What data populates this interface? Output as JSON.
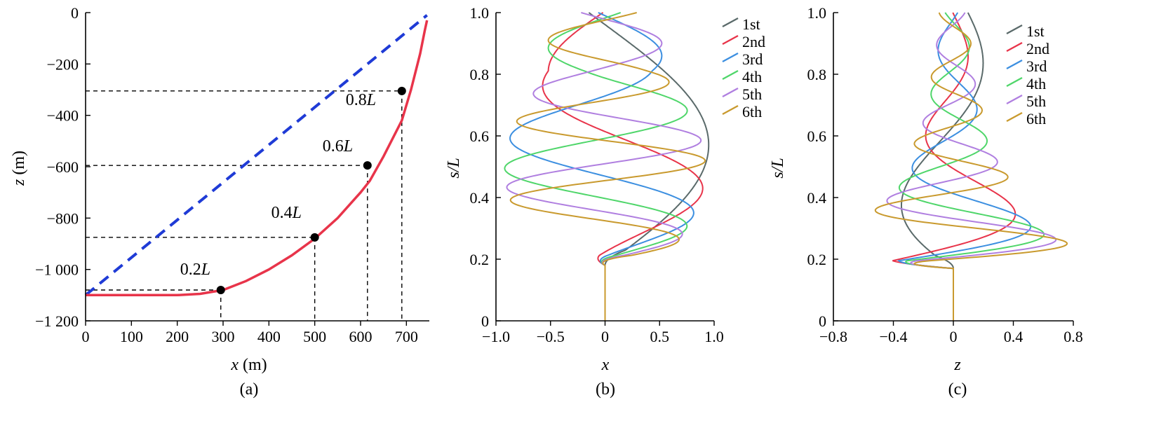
{
  "chart_data": [
    {
      "type": "line",
      "caption": "(a)",
      "xlabel_var": "x",
      "xlabel_unit": " (m)",
      "ylabel_var": "z",
      "ylabel_unit": " (m)",
      "xlim": [
        0,
        750
      ],
      "ylim": [
        -1200,
        0
      ],
      "xticks": [
        0,
        100,
        200,
        300,
        400,
        500,
        600,
        700
      ],
      "xtick_labels": [
        "0",
        "100",
        "200",
        "300",
        "400",
        "500",
        "600",
        "700"
      ],
      "yticks": [
        0,
        -200,
        -400,
        -600,
        -800,
        -1000,
        -1200
      ],
      "ytick_labels": [
        "0",
        "−200",
        "−400",
        "−600",
        "−800",
        "−1 000",
        "−1 200"
      ],
      "series": [
        {
          "style": "solid",
          "color": "#e8344a",
          "x": [
            0,
            100,
            200,
            250,
            300,
            350,
            400,
            450,
            500,
            550,
            600,
            620,
            650,
            690,
            710,
            730,
            740,
            745
          ],
          "y": [
            -1100,
            -1100,
            -1100,
            -1095,
            -1080,
            -1045,
            -1000,
            -945,
            -880,
            -800,
            -700,
            -655,
            -560,
            -420,
            -300,
            -160,
            -70,
            -30
          ]
        },
        {
          "style": "dashed",
          "color": "#1f3bd6",
          "x": [
            0,
            745
          ],
          "y": [
            -1100,
            -10
          ]
        }
      ],
      "markers": [
        {
          "label_num": "0.2",
          "label_var": "L",
          "x": 295,
          "y": -1080
        },
        {
          "label_num": "0.4",
          "label_var": "L",
          "x": 500,
          "y": -875
        },
        {
          "label_num": "0.6",
          "label_var": "L",
          "x": 615,
          "y": -595
        },
        {
          "label_num": "0.8",
          "label_var": "L",
          "x": 690,
          "y": -305
        }
      ]
    },
    {
      "type": "line",
      "caption": "(b)",
      "xlabel_var": "x",
      "ylabel_var": "s/L",
      "xlim": [
        -1.0,
        1.0
      ],
      "ylim": [
        0,
        1.0
      ],
      "xticks": [
        -1.0,
        -0.5,
        0,
        0.5,
        1.0
      ],
      "xtick_labels": [
        "−1.0",
        "−0.5",
        "0",
        "0.5",
        "1.0"
      ],
      "yticks": [
        0,
        0.2,
        0.4,
        0.6,
        0.8,
        1.0
      ],
      "ytick_labels": [
        "0",
        "0.2",
        "0.4",
        "0.6",
        "0.8",
        "1.0"
      ],
      "legend_position": "top-right",
      "series": [
        {
          "name": "1st",
          "color": "#5a6a6a",
          "mode": 1
        },
        {
          "name": "2nd",
          "color": "#e8344a",
          "mode": 2
        },
        {
          "name": "3rd",
          "color": "#3c8fe0",
          "mode": 3
        },
        {
          "name": "4th",
          "color": "#4fd66a",
          "mode": 4
        },
        {
          "name": "5th",
          "color": "#b07fe0",
          "mode": 5
        },
        {
          "name": "6th",
          "color": "#c99a2e",
          "mode": 6
        }
      ]
    },
    {
      "type": "line",
      "caption": "(c)",
      "xlabel_var": "z",
      "ylabel_var": "s/L",
      "xlim": [
        -0.8,
        0.8
      ],
      "ylim": [
        0,
        1.0
      ],
      "xticks": [
        -0.8,
        -0.4,
        0,
        0.4,
        0.8
      ],
      "xtick_labels": [
        "−0.8",
        "−0.4",
        "0",
        "0.4",
        "0.8"
      ],
      "yticks": [
        0,
        0.2,
        0.4,
        0.6,
        0.8,
        1.0
      ],
      "ytick_labels": [
        "0",
        "0.2",
        "0.4",
        "0.6",
        "0.8",
        "1.0"
      ],
      "legend_position": "top-right",
      "series": [
        {
          "name": "1st",
          "color": "#5a6a6a",
          "mode": 1
        },
        {
          "name": "2nd",
          "color": "#e8344a",
          "mode": 2
        },
        {
          "name": "3rd",
          "color": "#3c8fe0",
          "mode": 3
        },
        {
          "name": "4th",
          "color": "#4fd66a",
          "mode": 4
        },
        {
          "name": "5th",
          "color": "#b07fe0",
          "mode": 5
        },
        {
          "name": "6th",
          "color": "#c99a2e",
          "mode": 6
        }
      ]
    }
  ]
}
